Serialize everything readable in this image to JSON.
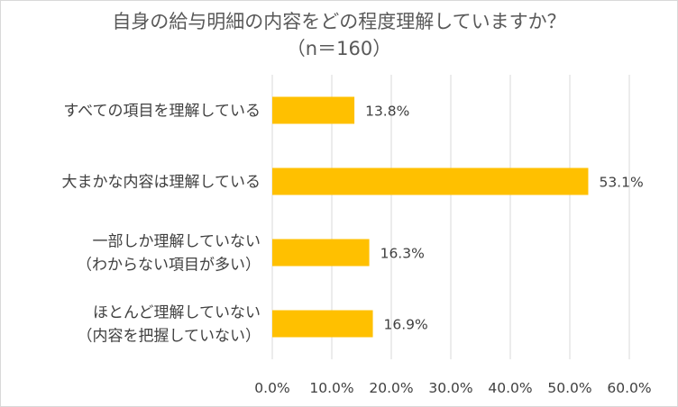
{
  "chart_data": {
    "type": "bar",
    "orientation": "horizontal",
    "title": "自身の給与明細の内容をどの程度理解していますか？",
    "subtitle": "（n＝160）",
    "categories": [
      [
        "すべての項目を理解している"
      ],
      [
        "大まかな内容は理解している"
      ],
      [
        "一部しか理解していない",
        "（わからない項目が多い）"
      ],
      [
        "ほとんど理解していない",
        "（内容を把握していない）"
      ]
    ],
    "values": [
      13.8,
      53.1,
      16.3,
      16.9
    ],
    "data_labels": [
      "13.8%",
      "53.1%",
      "16.3%",
      "16.9%"
    ],
    "xlim": [
      0,
      60
    ],
    "xticks": [
      "0.0%",
      "10.0%",
      "20.0%",
      "30.0%",
      "40.0%",
      "50.0%",
      "60.0%"
    ],
    "grid": "vertical",
    "bar_color": "#FFC000",
    "grid_color": "#D9D9D9"
  }
}
